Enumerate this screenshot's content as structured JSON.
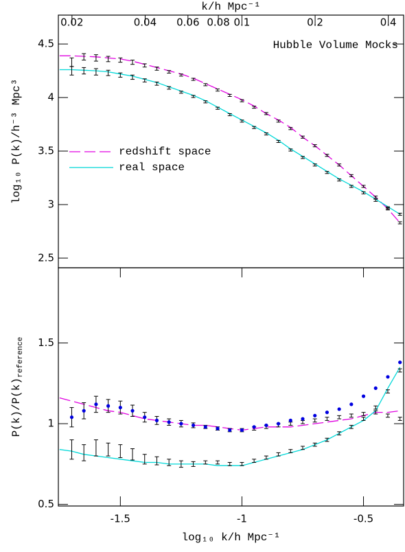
{
  "chart_data": [
    {
      "type": "line",
      "title": "Hubble Volume Mocks",
      "ylabel": "log₁₀ P(k)/h⁻³ Mpc³",
      "top_xlabel": "k/h Mpc⁻¹",
      "xlim": [
        -1.755,
        -0.335
      ],
      "ylim": [
        2.41,
        4.77
      ],
      "yticks": [
        2.5,
        3,
        3.5,
        4,
        4.5
      ],
      "top_xticks": [
        {
          "value": -1.699,
          "label": "0.02"
        },
        {
          "value": -1.398,
          "label": "0.04"
        },
        {
          "value": -1.222,
          "label": "0.06"
        },
        {
          "value": -1.097,
          "label": "0.08"
        },
        {
          "value": -1,
          "label": "0.1"
        },
        {
          "value": -0.699,
          "label": "0.2"
        },
        {
          "value": -0.398,
          "label": "0.4"
        }
      ],
      "legend": "left",
      "series": [
        {
          "name": "redshift space",
          "color": "#e000e0",
          "dash": "dashed",
          "x": [
            -1.75,
            -1.7,
            -1.65,
            -1.6,
            -1.55,
            -1.5,
            -1.45,
            -1.4,
            -1.35,
            -1.3,
            -1.25,
            -1.2,
            -1.15,
            -1.1,
            -1.05,
            -1.0,
            -0.95,
            -0.9,
            -0.85,
            -0.8,
            -0.75,
            -0.7,
            -0.65,
            -0.6,
            -0.55,
            -0.5,
            -0.45,
            -0.4,
            -0.35
          ],
          "values": [
            4.39,
            4.39,
            4.385,
            4.38,
            4.37,
            4.36,
            4.34,
            4.31,
            4.28,
            4.25,
            4.22,
            4.18,
            4.13,
            4.08,
            4.03,
            3.98,
            3.92,
            3.85,
            3.79,
            3.72,
            3.63,
            3.55,
            3.46,
            3.37,
            3.27,
            3.17,
            3.07,
            2.96,
            2.83
          ]
        },
        {
          "name": "real space",
          "color": "#00d8d8",
          "dash": "solid",
          "x": [
            -1.75,
            -1.7,
            -1.65,
            -1.6,
            -1.55,
            -1.5,
            -1.45,
            -1.4,
            -1.35,
            -1.3,
            -1.25,
            -1.2,
            -1.15,
            -1.1,
            -1.05,
            -1.0,
            -0.95,
            -0.9,
            -0.85,
            -0.8,
            -0.75,
            -0.7,
            -0.65,
            -0.6,
            -0.55,
            -0.5,
            -0.45,
            -0.4,
            -0.35
          ],
          "values": [
            4.26,
            4.26,
            4.255,
            4.25,
            4.24,
            4.22,
            4.2,
            4.17,
            4.14,
            4.1,
            4.06,
            4.02,
            3.97,
            3.91,
            3.85,
            3.79,
            3.73,
            3.67,
            3.6,
            3.52,
            3.45,
            3.38,
            3.31,
            3.24,
            3.18,
            3.12,
            3.05,
            2.98,
            2.91
          ]
        },
        {
          "color": "#000000",
          "x": [
            -1.7,
            -1.65,
            -1.6,
            -1.55,
            -1.5,
            -1.45,
            -1.4,
            -1.35,
            -1.3,
            -1.25,
            -1.2,
            -1.15,
            -1.1,
            -1.05,
            -1.0,
            -0.95,
            -0.9,
            -0.85,
            -0.8,
            -0.75,
            -0.7,
            -0.65,
            -0.6,
            -0.55,
            -0.5,
            -0.45,
            -0.4,
            -0.35
          ],
          "values": [
            4.33,
            4.38,
            4.37,
            4.36,
            4.35,
            4.33,
            4.3,
            4.27,
            4.24,
            4.21,
            4.17,
            4.12,
            4.07,
            4.02,
            3.97,
            3.91,
            3.85,
            3.78,
            3.71,
            3.63,
            3.55,
            3.46,
            3.37,
            3.27,
            3.17,
            3.07,
            2.96,
            2.83
          ],
          "errors": [
            0.04,
            0.03,
            0.03,
            0.025,
            0.02,
            0.02,
            0.015,
            0.015,
            0.012,
            0.01,
            0.01,
            0.01,
            0.01,
            0.01,
            0.01,
            0.01,
            0.01,
            0.01,
            0.01,
            0.01,
            0.01,
            0.01,
            0.01,
            0.01,
            0.01,
            0.01,
            0.01,
            0.01
          ]
        },
        {
          "color": "#000000",
          "x": [
            -1.7,
            -1.65,
            -1.6,
            -1.55,
            -1.5,
            -1.45,
            -1.4,
            -1.35,
            -1.3,
            -1.25,
            -1.2,
            -1.15,
            -1.1,
            -1.05,
            -1.0,
            -0.95,
            -0.9,
            -0.85,
            -0.8,
            -0.75,
            -0.7,
            -0.65,
            -0.6,
            -0.55,
            -0.5,
            -0.45,
            -0.4,
            -0.35
          ],
          "values": [
            4.25,
            4.25,
            4.24,
            4.23,
            4.21,
            4.19,
            4.16,
            4.13,
            4.09,
            4.05,
            4.01,
            3.96,
            3.9,
            3.84,
            3.78,
            3.72,
            3.66,
            3.59,
            3.51,
            3.44,
            3.37,
            3.3,
            3.23,
            3.17,
            3.11,
            3.04,
            2.97,
            2.91
          ],
          "errors": [
            0.04,
            0.03,
            0.03,
            0.025,
            0.02,
            0.02,
            0.015,
            0.015,
            0.012,
            0.01,
            0.01,
            0.01,
            0.01,
            0.01,
            0.01,
            0.01,
            0.01,
            0.01,
            0.01,
            0.01,
            0.01,
            0.01,
            0.01,
            0.01,
            0.01,
            0.01,
            0.01,
            0.01
          ]
        }
      ]
    },
    {
      "type": "line",
      "ylabel": "P(k)/P(k)",
      "ylabel_sub": "reference",
      "xlabel": "log₁₀ k/h Mpc⁻¹",
      "xlim": [
        -1.755,
        -0.335
      ],
      "ylim": [
        0.49,
        1.966
      ],
      "yticks": [
        0.5,
        1,
        1.5
      ],
      "xticks": [
        -1.5,
        -1,
        -0.5
      ],
      "series": [
        {
          "color": "#e000e0",
          "dash": "dashed",
          "x": [
            -1.75,
            -1.7,
            -1.65,
            -1.6,
            -1.55,
            -1.5,
            -1.45,
            -1.4,
            -1.35,
            -1.3,
            -1.25,
            -1.2,
            -1.15,
            -1.1,
            -1.05,
            -1.0,
            -0.95,
            -0.9,
            -0.85,
            -0.8,
            -0.75,
            -0.7,
            -0.65,
            -0.6,
            -0.55,
            -0.5,
            -0.45,
            -0.4,
            -0.35
          ],
          "values": [
            1.16,
            1.14,
            1.12,
            1.1,
            1.08,
            1.07,
            1.05,
            1.03,
            1.02,
            1.01,
            1.0,
            0.99,
            0.99,
            0.98,
            0.97,
            0.96,
            0.97,
            0.98,
            0.98,
            0.98,
            0.99,
            1.0,
            1.01,
            1.02,
            1.03,
            1.05,
            1.07,
            1.07,
            1.08
          ]
        },
        {
          "color": "#00d8d8",
          "dash": "solid",
          "x": [
            -1.75,
            -1.7,
            -1.65,
            -1.6,
            -1.55,
            -1.5,
            -1.45,
            -1.4,
            -1.35,
            -1.3,
            -1.25,
            -1.2,
            -1.15,
            -1.1,
            -1.05,
            -1.0,
            -0.95,
            -0.9,
            -0.85,
            -0.8,
            -0.75,
            -0.7,
            -0.65,
            -0.6,
            -0.55,
            -0.5,
            -0.45,
            -0.4,
            -0.35
          ],
          "values": [
            0.84,
            0.83,
            0.81,
            0.8,
            0.79,
            0.78,
            0.77,
            0.76,
            0.76,
            0.75,
            0.75,
            0.75,
            0.75,
            0.74,
            0.74,
            0.74,
            0.76,
            0.78,
            0.8,
            0.82,
            0.84,
            0.87,
            0.9,
            0.94,
            0.98,
            1.02,
            1.08,
            1.22,
            1.35
          ]
        },
        {
          "color": "#000000",
          "x": [
            -1.7,
            -1.65,
            -1.6,
            -1.55,
            -1.5,
            -1.45,
            -1.4,
            -1.35,
            -1.3,
            -1.25,
            -1.2,
            -1.15,
            -1.1,
            -1.05,
            -1.0,
            -0.95,
            -0.9,
            -0.85,
            -0.8,
            -0.75,
            -0.7,
            -0.65,
            -0.6,
            -0.55,
            -0.5,
            -0.45,
            -0.4,
            -0.35
          ],
          "values": [
            1.04,
            1.08,
            1.12,
            1.11,
            1.1,
            1.08,
            1.04,
            1.02,
            1.01,
            1.0,
            0.99,
            0.98,
            0.97,
            0.96,
            0.96,
            0.97,
            0.98,
            0.99,
            1.0,
            1.01,
            1.02,
            1.03,
            1.04,
            1.05,
            1.06,
            1.07,
            1.05,
            1.03
          ],
          "errors": [
            0.06,
            0.05,
            0.05,
            0.04,
            0.04,
            0.035,
            0.03,
            0.025,
            0.02,
            0.02,
            0.015,
            0.01,
            0.01,
            0.01,
            0.01,
            0.01,
            0.01,
            0.01,
            0.01,
            0.01,
            0.01,
            0.01,
            0.01,
            0.01,
            0.01,
            0.01,
            0.01,
            0.01
          ]
        },
        {
          "color": "#000000",
          "x": [
            -1.7,
            -1.65,
            -1.6,
            -1.55,
            -1.5,
            -1.45,
            -1.4,
            -1.35,
            -1.3,
            -1.25,
            -1.2,
            -1.15,
            -1.1,
            -1.05,
            -1.0,
            -0.95,
            -0.9,
            -0.85,
            -0.8,
            -0.75,
            -0.7,
            -0.65,
            -0.6,
            -0.55,
            -0.5,
            -0.45,
            -0.4,
            -0.35
          ],
          "values": [
            0.84,
            0.82,
            0.85,
            0.84,
            0.83,
            0.81,
            0.78,
            0.77,
            0.76,
            0.75,
            0.75,
            0.76,
            0.76,
            0.75,
            0.75,
            0.77,
            0.79,
            0.81,
            0.83,
            0.85,
            0.87,
            0.9,
            0.94,
            0.98,
            1.03,
            1.1,
            1.2,
            1.33
          ],
          "errors": [
            0.06,
            0.05,
            0.05,
            0.04,
            0.04,
            0.035,
            0.03,
            0.025,
            0.02,
            0.02,
            0.015,
            0.01,
            0.01,
            0.01,
            0.01,
            0.01,
            0.01,
            0.01,
            0.01,
            0.01,
            0.01,
            0.01,
            0.01,
            0.01,
            0.01,
            0.01,
            0.01,
            0.01
          ]
        },
        {
          "color": "#0000e0",
          "marker": "dot",
          "x": [
            -1.7,
            -1.65,
            -1.6,
            -1.55,
            -1.5,
            -1.45,
            -1.4,
            -1.35,
            -1.3,
            -1.25,
            -1.2,
            -1.15,
            -1.1,
            -1.05,
            -1.0,
            -0.95,
            -0.9,
            -0.85,
            -0.8,
            -0.75,
            -0.7,
            -0.65,
            -0.6,
            -0.55,
            -0.5,
            -0.45,
            -0.4,
            -0.35
          ],
          "values": [
            1.04,
            1.08,
            1.12,
            1.11,
            1.1,
            1.08,
            1.04,
            1.02,
            1.01,
            1.0,
            0.99,
            0.98,
            0.97,
            0.96,
            0.96,
            0.98,
            0.99,
            1.0,
            1.02,
            1.03,
            1.05,
            1.07,
            1.09,
            1.12,
            1.17,
            1.22,
            1.29,
            1.38
          ]
        }
      ]
    }
  ]
}
